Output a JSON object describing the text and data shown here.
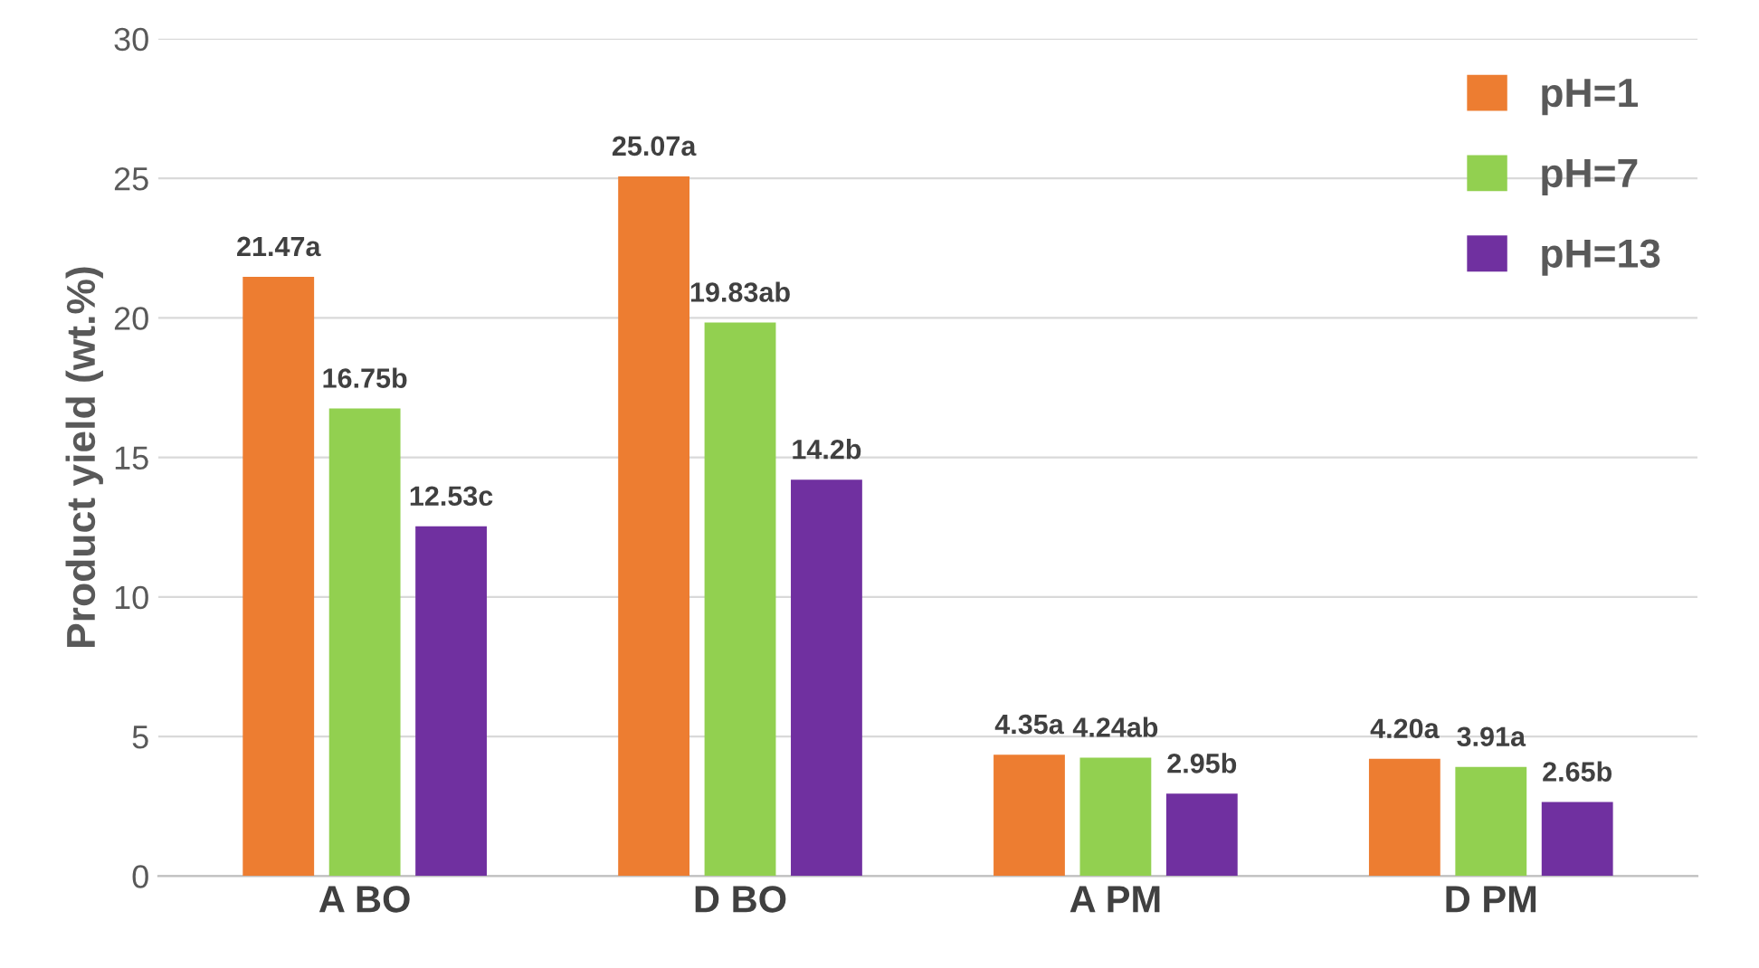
{
  "chart_data": {
    "type": "bar",
    "ylabel": "Product yield (wt.%)",
    "categories": [
      "A BO",
      "D BO",
      "A PM",
      "D PM"
    ],
    "series": [
      {
        "name": "pH=1",
        "color": "#ed7d31",
        "values": [
          21.47,
          25.07,
          4.35,
          4.2
        ],
        "value_labels": [
          "21.47a",
          "25.07a",
          "4.35a",
          "4.20a"
        ]
      },
      {
        "name": "pH=7",
        "color": "#92d050",
        "values": [
          16.75,
          19.83,
          4.24,
          3.91
        ],
        "value_labels": [
          "16.75b",
          "19.83ab",
          "4.24ab",
          "3.91a"
        ]
      },
      {
        "name": "pH=13",
        "color": "#7030a0",
        "values": [
          12.53,
          14.2,
          2.95,
          2.65
        ],
        "value_labels": [
          "12.53c",
          "14.2b",
          "2.95b",
          "2.65b"
        ]
      }
    ],
    "ylim": [
      0,
      30
    ],
    "yticks": [
      0,
      5,
      10,
      15,
      20,
      25,
      30
    ],
    "grid": "y",
    "legend": "top right"
  }
}
